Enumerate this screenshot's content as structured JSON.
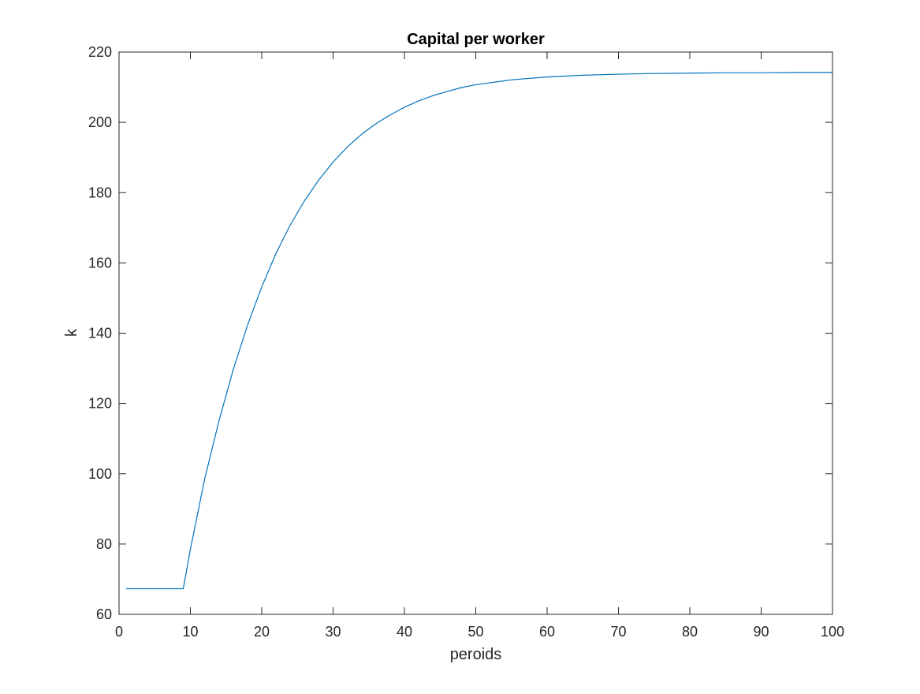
{
  "chart_data": {
    "type": "line",
    "title": "Capital per worker",
    "xlabel": "peroids",
    "ylabel": "k",
    "xlim": [
      0,
      100
    ],
    "ylim": [
      60,
      220
    ],
    "xticks": [
      0,
      10,
      20,
      30,
      40,
      50,
      60,
      70,
      80,
      90,
      100
    ],
    "yticks": [
      60,
      80,
      100,
      120,
      140,
      160,
      180,
      200,
      220
    ],
    "grid": false,
    "colors": {
      "line": "#0072BD",
      "axes": "#262626"
    },
    "series": [
      {
        "x": [
          1,
          2,
          3,
          4,
          5,
          6,
          7,
          8,
          9,
          10,
          12,
          14,
          16,
          18,
          20,
          22,
          24,
          26,
          28,
          30,
          32,
          34,
          36,
          38,
          40,
          42,
          44,
          46,
          48,
          50,
          55,
          60,
          65,
          70,
          75,
          80,
          85,
          90,
          95,
          100
        ],
        "y": [
          67.3,
          67.3,
          67.3,
          67.3,
          67.3,
          67.3,
          67.3,
          67.3,
          67.3,
          78.5,
          98.5,
          115.0,
          129.6,
          142.2,
          153.2,
          162.7,
          170.8,
          177.7,
          183.6,
          188.7,
          193.0,
          196.6,
          199.6,
          202.1,
          204.3,
          206.1,
          207.6,
          208.8,
          209.9,
          210.7,
          212.1,
          212.9,
          213.4,
          213.7,
          213.9,
          214.0,
          214.1,
          214.1,
          214.2,
          214.2
        ]
      }
    ]
  }
}
